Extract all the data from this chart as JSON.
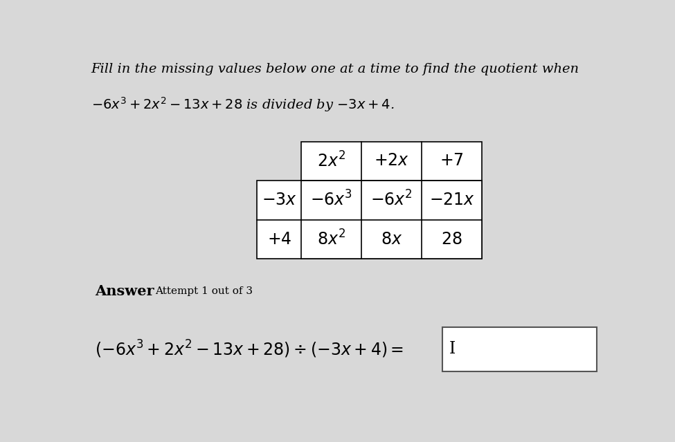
{
  "background_color": "#d8d8d8",
  "title_line1": "Fill in the missing values below one at a time to find the quotient when",
  "title_line2": "$-6x^3 + 2x^2 - 13x + 28$ is divided by $-3x + 4$.",
  "header_row": [
    "$2x^2$",
    "$+2x$",
    "$+7$"
  ],
  "row1_label": "$-3x$",
  "row1_cells": [
    "$-6x^3$",
    "$-6x^2$",
    "$-21x$"
  ],
  "row2_label": "$+4$",
  "row2_cells": [
    "$8x^2$",
    "$8x$",
    "$28$"
  ],
  "answer_label": "Answer",
  "attempt_text": "Attempt 1 out of 3",
  "answer_equation": "$(-6x^3 + 2x^2 - 13x + 28) \\div (-3x + 4) =$",
  "answer_box_text": "I",
  "font_size_title": 14,
  "font_size_table": 17,
  "font_size_answer": 17,
  "font_size_answer_label": 15,
  "font_size_attempt": 11
}
